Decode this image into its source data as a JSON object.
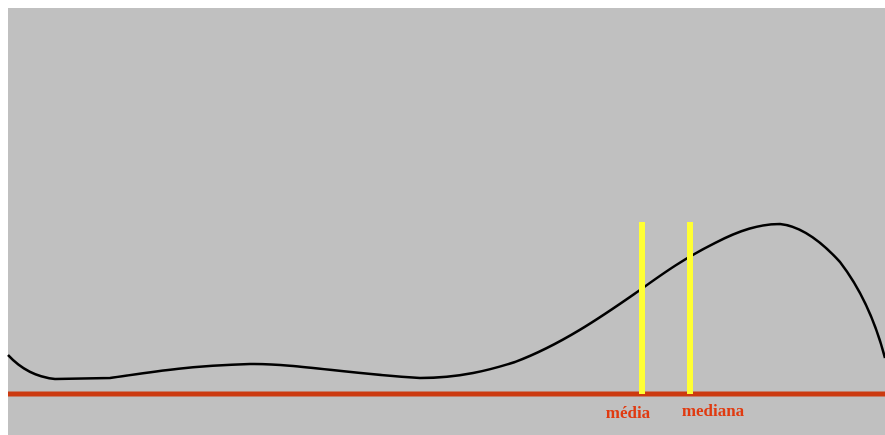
{
  "labels": {
    "mean": "média",
    "median": "mediana"
  }
}
